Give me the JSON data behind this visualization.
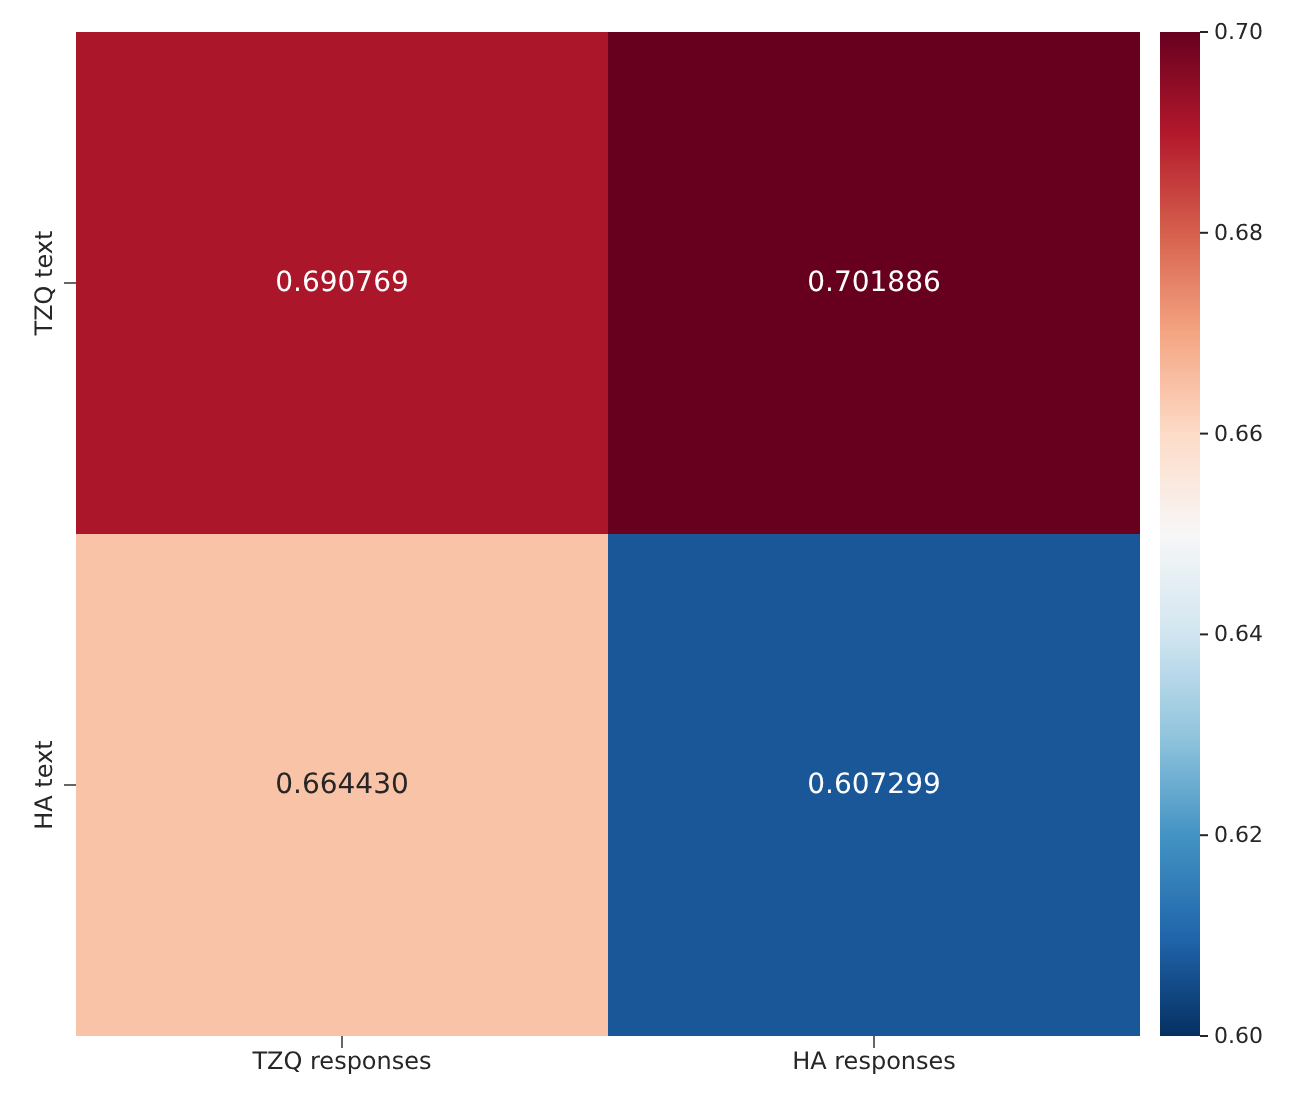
{
  "chart_data": {
    "type": "heatmap",
    "categories": [
      "TZQ responses",
      "HA responses"
    ],
    "y_categories": [
      "TZQ text",
      "HA text"
    ],
    "cells": [
      [
        0.690769,
        0.701886
      ],
      [
        0.66443,
        0.607299
      ]
    ],
    "cell_labels": [
      [
        "0.690769",
        "0.701886"
      ],
      [
        "0.664430",
        "0.607299"
      ]
    ],
    "clim": [
      0.6,
      0.7
    ],
    "cticks": [
      {
        "value": 0.6,
        "label": "0.60"
      },
      {
        "value": 0.62,
        "label": "0.62"
      },
      {
        "value": 0.64,
        "label": "0.64"
      },
      {
        "value": 0.66,
        "label": "0.66"
      },
      {
        "value": 0.68,
        "label": "0.68"
      },
      {
        "value": 0.7,
        "label": "0.70"
      }
    ]
  }
}
